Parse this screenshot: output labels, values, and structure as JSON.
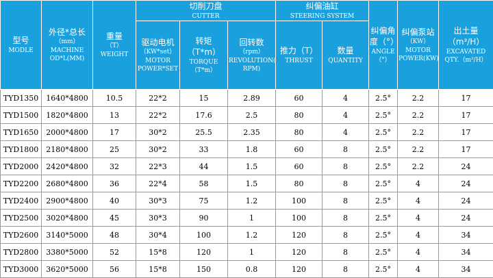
{
  "header": {
    "groups": [
      {
        "title": "切削刀盘",
        "subtitle": "CUTTER"
      },
      {
        "title": "纠偏油缸",
        "subtitle": "STEERING SYSTEM"
      }
    ],
    "columns": [
      {
        "lines": [
          "型号",
          "MODLE"
        ]
      },
      {
        "lines": [
          "外径*总长",
          "（mm）",
          "MACHINE OD*L(MM)"
        ]
      },
      {
        "lines": [
          "重量",
          "（T）",
          "WEIGHT"
        ]
      },
      {
        "lines": [
          "驱动电机",
          "（KW*set）",
          "MOTOR POWER*SET"
        ]
      },
      {
        "lines": [
          "转矩（T*m）",
          "TORQUE（T*m）"
        ]
      },
      {
        "lines": [
          "回转数",
          "（rpm）",
          "REVOLUTION( RPM)"
        ]
      },
      {
        "lines": [
          "推力（T）",
          "THRUST"
        ]
      },
      {
        "lines": [
          "数量",
          "QUANTITY"
        ]
      },
      {
        "lines": [
          "纠偏角度（°）",
          "ANGLE（°）"
        ]
      },
      {
        "lines": [
          "纠偏泵站",
          "（KW）",
          "MOTOR POWER(KW)"
        ]
      },
      {
        "lines": [
          "出土量（m³/H）",
          "EXCAVATED QTY.（m³/H）"
        ]
      }
    ]
  },
  "table": {
    "rows": [
      [
        "TYD1350",
        "1640*4800",
        10.5,
        "22*2",
        15,
        2.89,
        60,
        4,
        "2.5°",
        2.2,
        17
      ],
      [
        "TYD1500",
        "1820*4800",
        13,
        "22*2",
        17.6,
        2.5,
        80,
        4,
        "2.5°",
        2.2,
        17
      ],
      [
        "TYD1650",
        "2000*4800",
        17,
        "30*2",
        25.5,
        2.35,
        80,
        4,
        "2.5°",
        2.2,
        17
      ],
      [
        "TYD1800",
        "2180*4800",
        25,
        "30*2",
        33,
        1.8,
        60,
        8,
        "2.5°",
        2.2,
        17
      ],
      [
        "TYD2000",
        "2420*4800",
        32,
        "22*3",
        44,
        1.5,
        60,
        8,
        "2.5°",
        2.2,
        24
      ],
      [
        "TYD2200",
        "2680*4800",
        36,
        "22*4",
        58,
        1.5,
        80,
        8,
        "2.5°",
        4,
        24
      ],
      [
        "TYD2400",
        "2900*4800",
        40,
        "30*3",
        75,
        1.2,
        100,
        8,
        "2.5°",
        4,
        24
      ],
      [
        "TYD2500",
        "3020*4800",
        45,
        "30*3",
        90,
        1,
        100,
        8,
        "2.5°",
        4,
        24
      ],
      [
        "TYD2600",
        "3140*5000",
        48,
        "30*4",
        100,
        1.2,
        120,
        8,
        "2.5°",
        4,
        34
      ],
      [
        "TYD2800",
        "3380*5000",
        52,
        "15*8",
        120,
        1,
        120,
        8,
        "2.5°",
        4,
        34
      ],
      [
        "TYD3000",
        "3620*5000",
        56,
        "15*8",
        150,
        0.8,
        120,
        8,
        "2.5°",
        4,
        34
      ]
    ]
  }
}
